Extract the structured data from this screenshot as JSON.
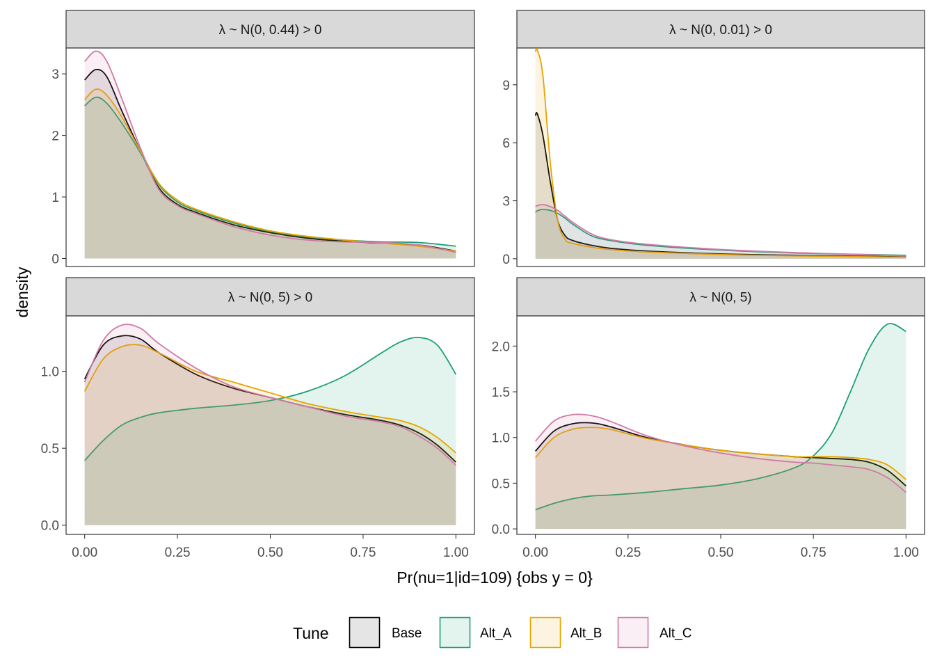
{
  "chart_data": {
    "type": "area",
    "xlabel": "Pr(nu=1|id=109) {obs y = 0}",
    "ylabel": "density",
    "x_ticks": [
      "0.00",
      "0.25",
      "0.50",
      "0.75",
      "1.00"
    ],
    "xlim": [
      -0.05,
      1.05
    ],
    "grid": false,
    "legend": {
      "title": "Tune",
      "position": "bottom",
      "entries": [
        "Base",
        "Alt_A",
        "Alt_B",
        "Alt_C"
      ]
    },
    "colors": {
      "Base": "#000000",
      "Alt_A": "#1b9e77",
      "Alt_B": "#e6a400",
      "Alt_C": "#d07aa6"
    },
    "fills": {
      "Base": "#bdbdbd",
      "Alt_A": "#1b9e77",
      "Alt_B": "#e6a400",
      "Alt_C": "#d07aa6"
    },
    "panels": [
      {
        "strip": "λ ~ N(0, 0.44) > 0",
        "ylim": [
          -0.13,
          3.42
        ],
        "y_ticks": [
          0,
          1,
          2,
          3
        ],
        "y_tick_labels": [
          "0",
          "1",
          "2",
          "3"
        ],
        "x": [
          0,
          0.03,
          0.06,
          0.1,
          0.15,
          0.2,
          0.25,
          0.3,
          0.4,
          0.5,
          0.6,
          0.7,
          0.8,
          0.9,
          1.0
        ],
        "series": [
          {
            "name": "Base",
            "values": [
              2.9,
              3.07,
              2.95,
              2.4,
              1.75,
              1.15,
              0.88,
              0.75,
              0.55,
              0.42,
              0.33,
              0.28,
              0.25,
              0.22,
              0.12
            ]
          },
          {
            "name": "Alt_A",
            "values": [
              2.48,
              2.62,
              2.52,
              2.2,
              1.72,
              1.2,
              0.92,
              0.78,
              0.58,
              0.44,
              0.35,
              0.3,
              0.27,
              0.26,
              0.2
            ]
          },
          {
            "name": "Alt_B",
            "values": [
              2.58,
              2.75,
              2.65,
              2.3,
              1.75,
              1.22,
              0.95,
              0.8,
              0.6,
              0.45,
              0.36,
              0.3,
              0.25,
              0.2,
              0.12
            ]
          },
          {
            "name": "Alt_C",
            "values": [
              3.2,
              3.37,
              3.2,
              2.6,
              1.8,
              1.12,
              0.86,
              0.73,
              0.52,
              0.38,
              0.3,
              0.27,
              0.26,
              0.22,
              0.1
            ]
          }
        ]
      },
      {
        "strip": "λ ~ N(0, 0.01) > 0",
        "ylim": [
          -0.4,
          10.9
        ],
        "y_ticks": [
          0,
          3,
          6,
          9
        ],
        "y_tick_labels": [
          "0",
          "3",
          "6",
          "9"
        ],
        "x": [
          0,
          0.005,
          0.02,
          0.04,
          0.06,
          0.08,
          0.1,
          0.15,
          0.2,
          0.3,
          0.5,
          0.7,
          1.0
        ],
        "series": [
          {
            "name": "Base",
            "values": [
              7.4,
              7.5,
              6.4,
              4.0,
              2.0,
              1.2,
              0.95,
              0.7,
              0.55,
              0.4,
              0.25,
              0.18,
              0.1
            ]
          },
          {
            "name": "Alt_A",
            "values": [
              2.4,
              2.48,
              2.55,
              2.5,
              2.35,
              2.1,
              1.8,
              1.2,
              0.95,
              0.7,
              0.45,
              0.3,
              0.18
            ]
          },
          {
            "name": "Alt_B",
            "values": [
              10.7,
              10.8,
              9.5,
              5.0,
              2.0,
              1.0,
              0.8,
              0.6,
              0.48,
              0.35,
              0.22,
              0.15,
              0.08
            ]
          },
          {
            "name": "Alt_C",
            "values": [
              2.7,
              2.75,
              2.8,
              2.7,
              2.5,
              2.2,
              1.9,
              1.3,
              1.0,
              0.75,
              0.48,
              0.32,
              0.15
            ]
          }
        ]
      },
      {
        "strip": "λ ~ N(0, 5) > 0",
        "ylim": [
          -0.06,
          1.36
        ],
        "y_ticks": [
          0,
          0.5,
          1.0
        ],
        "y_tick_labels": [
          "0.0",
          "0.5",
          "1.0"
        ],
        "x": [
          0,
          0.05,
          0.1,
          0.15,
          0.2,
          0.3,
          0.4,
          0.5,
          0.6,
          0.7,
          0.8,
          0.85,
          0.9,
          0.95,
          1.0
        ],
        "series": [
          {
            "name": "Base",
            "values": [
              0.95,
              1.17,
              1.23,
              1.21,
              1.12,
              0.98,
              0.89,
              0.83,
              0.77,
              0.72,
              0.68,
              0.65,
              0.6,
              0.52,
              0.41
            ]
          },
          {
            "name": "Alt_A",
            "values": [
              0.42,
              0.55,
              0.65,
              0.7,
              0.73,
              0.76,
              0.78,
              0.81,
              0.87,
              0.97,
              1.12,
              1.19,
              1.22,
              1.17,
              0.98
            ]
          },
          {
            "name": "Alt_B",
            "values": [
              0.87,
              1.08,
              1.16,
              1.17,
              1.12,
              1.0,
              0.93,
              0.86,
              0.79,
              0.74,
              0.7,
              0.68,
              0.64,
              0.57,
              0.47
            ]
          },
          {
            "name": "Alt_C",
            "values": [
              0.93,
              1.2,
              1.3,
              1.28,
              1.18,
              1.02,
              0.9,
              0.83,
              0.77,
              0.71,
              0.67,
              0.64,
              0.58,
              0.5,
              0.39
            ]
          }
        ]
      },
      {
        "strip": "λ ~ N(0, 5)",
        "ylim": [
          -0.06,
          2.33
        ],
        "y_ticks": [
          0,
          0.5,
          1.0,
          1.5,
          2.0
        ],
        "y_tick_labels": [
          "0.0",
          "0.5",
          "1.0",
          "1.5",
          "2.0"
        ],
        "x": [
          0,
          0.05,
          0.1,
          0.15,
          0.2,
          0.3,
          0.4,
          0.5,
          0.6,
          0.7,
          0.75,
          0.8,
          0.85,
          0.9,
          0.95,
          1.0
        ],
        "series": [
          {
            "name": "Base",
            "values": [
              0.85,
              1.07,
              1.15,
              1.16,
              1.12,
              1.0,
              0.92,
              0.86,
              0.82,
              0.79,
              0.78,
              0.77,
              0.76,
              0.73,
              0.64,
              0.47
            ]
          },
          {
            "name": "Alt_A",
            "values": [
              0.21,
              0.28,
              0.33,
              0.36,
              0.37,
              0.4,
              0.44,
              0.48,
              0.55,
              0.67,
              0.8,
              1.05,
              1.5,
              1.97,
              2.24,
              2.16
            ]
          },
          {
            "name": "Alt_B",
            "values": [
              0.78,
              1.0,
              1.09,
              1.11,
              1.09,
              0.99,
              0.92,
              0.86,
              0.82,
              0.79,
              0.79,
              0.79,
              0.78,
              0.76,
              0.7,
              0.54
            ]
          },
          {
            "name": "Alt_C",
            "values": [
              0.96,
              1.18,
              1.25,
              1.24,
              1.18,
              1.02,
              0.91,
              0.83,
              0.77,
              0.73,
              0.72,
              0.7,
              0.68,
              0.65,
              0.56,
              0.4
            ]
          }
        ]
      }
    ]
  }
}
